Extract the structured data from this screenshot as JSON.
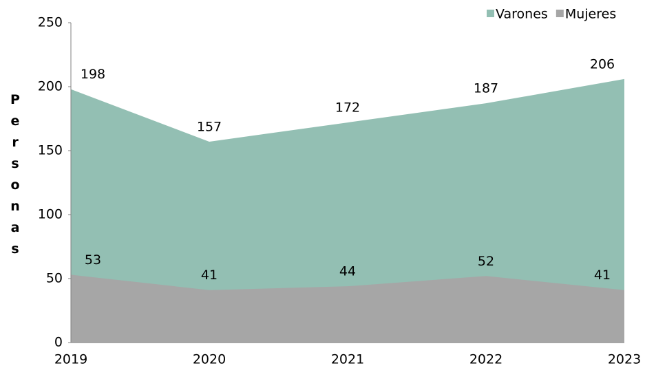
{
  "chart_data": {
    "type": "area",
    "y_label": "Personas",
    "categories": [
      "2019",
      "2020",
      "2021",
      "2022",
      "2023"
    ],
    "series": [
      {
        "name": "Varones",
        "color": "#93bfb3",
        "values": [
          198,
          157,
          172,
          187,
          206
        ]
      },
      {
        "name": "Mujeres",
        "color": "#a6a6a6",
        "values": [
          53,
          41,
          44,
          52,
          41
        ]
      }
    ],
    "ylim": [
      0,
      250
    ],
    "yticks": [
      0,
      50,
      100,
      150,
      200,
      250
    ],
    "legend": "top-right",
    "grid": false
  }
}
